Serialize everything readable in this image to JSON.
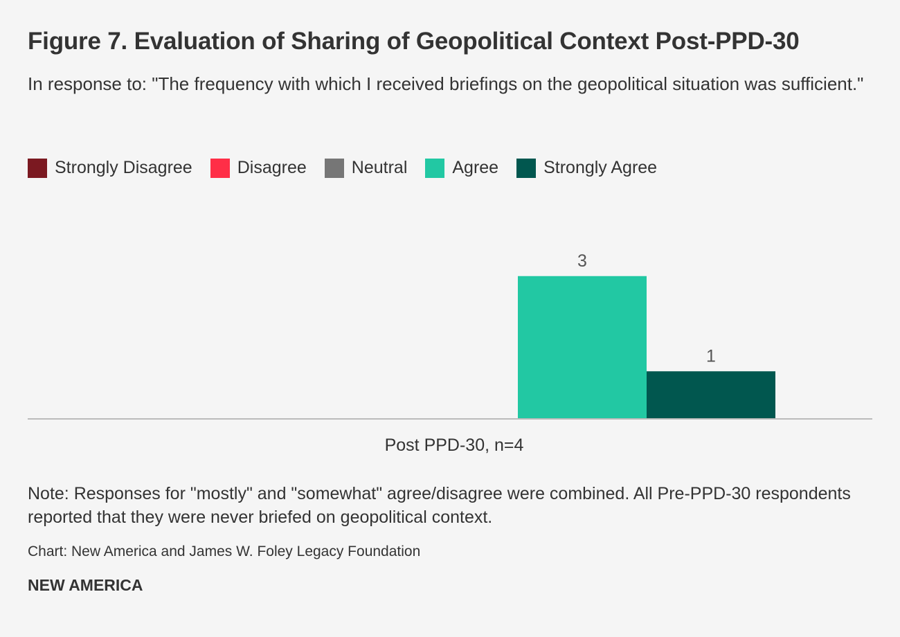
{
  "header": {
    "title": "Figure 7. Evaluation of Sharing of Geopolitical Context Post-PPD-30",
    "subtitle": "In response to: \"The frequency with which I received briefings on the geopolitical situation was sufficient.\""
  },
  "legend": {
    "items": [
      {
        "label": "Strongly Disagree",
        "color": "#7b1921"
      },
      {
        "label": "Disagree",
        "color": "#ff2e47"
      },
      {
        "label": "Neutral",
        "color": "#767676"
      },
      {
        "label": "Agree",
        "color": "#22c8a3"
      },
      {
        "label": "Strongly Agree",
        "color": "#01574f"
      }
    ]
  },
  "chart_data": {
    "type": "bar",
    "categories": [
      "Post PPD-30, n=4"
    ],
    "series": [
      {
        "name": "Strongly Disagree",
        "values": [
          0
        ]
      },
      {
        "name": "Disagree",
        "values": [
          0
        ]
      },
      {
        "name": "Neutral",
        "values": [
          0
        ]
      },
      {
        "name": "Agree",
        "values": [
          3
        ]
      },
      {
        "name": "Strongly Agree",
        "values": [
          1
        ]
      }
    ],
    "value_labels": [
      [
        "",
        "",
        "",
        "3",
        "1"
      ]
    ],
    "ylim": [
      0,
      4
    ],
    "grid": false,
    "legend_position": "top-left"
  },
  "footer": {
    "note": "Note: Responses for \"mostly\" and \"somewhat\" agree/disagree were combined. All Pre-PPD-30 respondents reported that they were never briefed on geopolitical context.",
    "source": "Chart: New America and James W. Foley Legacy Foundation",
    "brand": "NEW AMERICA"
  }
}
